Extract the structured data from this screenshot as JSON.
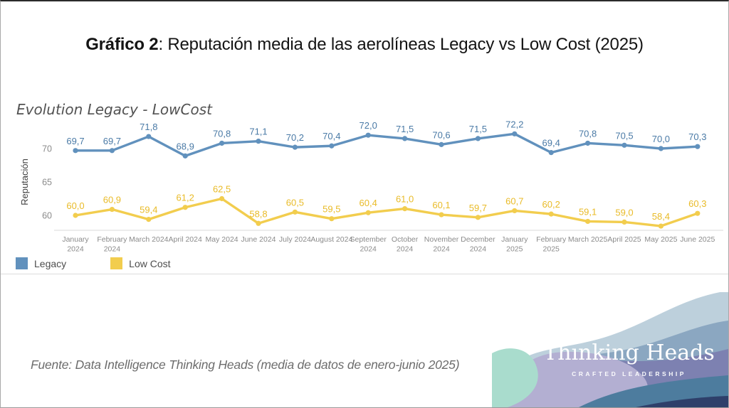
{
  "title": {
    "prefix": "Gráfico 2",
    "rest": ": Reputación media de las aerolíneas Legacy vs Low Cost (2025)"
  },
  "subtitle": "Evolution Legacy - LowCost",
  "footer": "Fuente: Data Intelligence Thinking Heads (media de datos de enero-junio 2025)",
  "legend": {
    "legacy_label": "Legacy",
    "lowcost_label": "Low Cost"
  },
  "logo": {
    "name": "Thınking Heads",
    "tagline": "CRAFTED LEADERSHIP"
  },
  "colors": {
    "legacy_line": "#6191bd",
    "legacy_label": "#4a7aa6",
    "lowcost_line": "#f2cd4e",
    "lowcost_label": "#e9bb28",
    "axis_text": "#8b8b8b",
    "axis_line": "#d9d9d9",
    "ylabel_text": "#414141",
    "wave_light": "#bdd0dc",
    "wave_slate": "#8ba7c1",
    "wave_purple": "#7d81b1",
    "wave_mint": "#a9dccd",
    "wave_lavender": "#b3afd2",
    "wave_teal_dark": "#4d7c9e",
    "wave_navy": "#2e3f6a"
  },
  "chart_data": {
    "type": "line",
    "title": "Evolution Legacy - LowCost",
    "xlabel": "",
    "ylabel": "Reputación",
    "yticks": [
      60,
      65,
      70
    ],
    "ylim": [
      58,
      73.5
    ],
    "grid": false,
    "legend_position": "bottom-left",
    "decimal_separator": ",",
    "x_labels": [
      [
        "January",
        "2024"
      ],
      [
        "February",
        "2024"
      ],
      [
        "March 2024"
      ],
      [
        "April 2024"
      ],
      [
        "May 2024"
      ],
      [
        "June 2024"
      ],
      [
        "July 2024"
      ],
      [
        "August 2024"
      ],
      [
        "September",
        "2024"
      ],
      [
        "October",
        "2024"
      ],
      [
        "November",
        "2024"
      ],
      [
        "December",
        "2024"
      ],
      [
        "January",
        "2025"
      ],
      [
        "February",
        "2025"
      ],
      [
        "March 2025"
      ],
      [
        "April 2025"
      ],
      [
        "May 2025"
      ],
      [
        "June 2025"
      ]
    ],
    "series": [
      {
        "name": "Legacy",
        "color_key": "legacy_line",
        "label_color_key": "legacy_label",
        "values": [
          69.7,
          69.7,
          71.8,
          68.9,
          70.8,
          71.1,
          70.2,
          70.4,
          72.0,
          71.5,
          70.6,
          71.5,
          72.2,
          69.4,
          70.8,
          70.5,
          70.0,
          70.3
        ]
      },
      {
        "name": "Low Cost",
        "color_key": "lowcost_line",
        "label_color_key": "lowcost_label",
        "values": [
          60.0,
          60.9,
          59.4,
          61.2,
          62.5,
          58.8,
          60.5,
          59.5,
          60.4,
          61.0,
          60.1,
          59.7,
          60.7,
          60.2,
          59.1,
          59.0,
          58.4,
          60.3
        ]
      }
    ]
  }
}
